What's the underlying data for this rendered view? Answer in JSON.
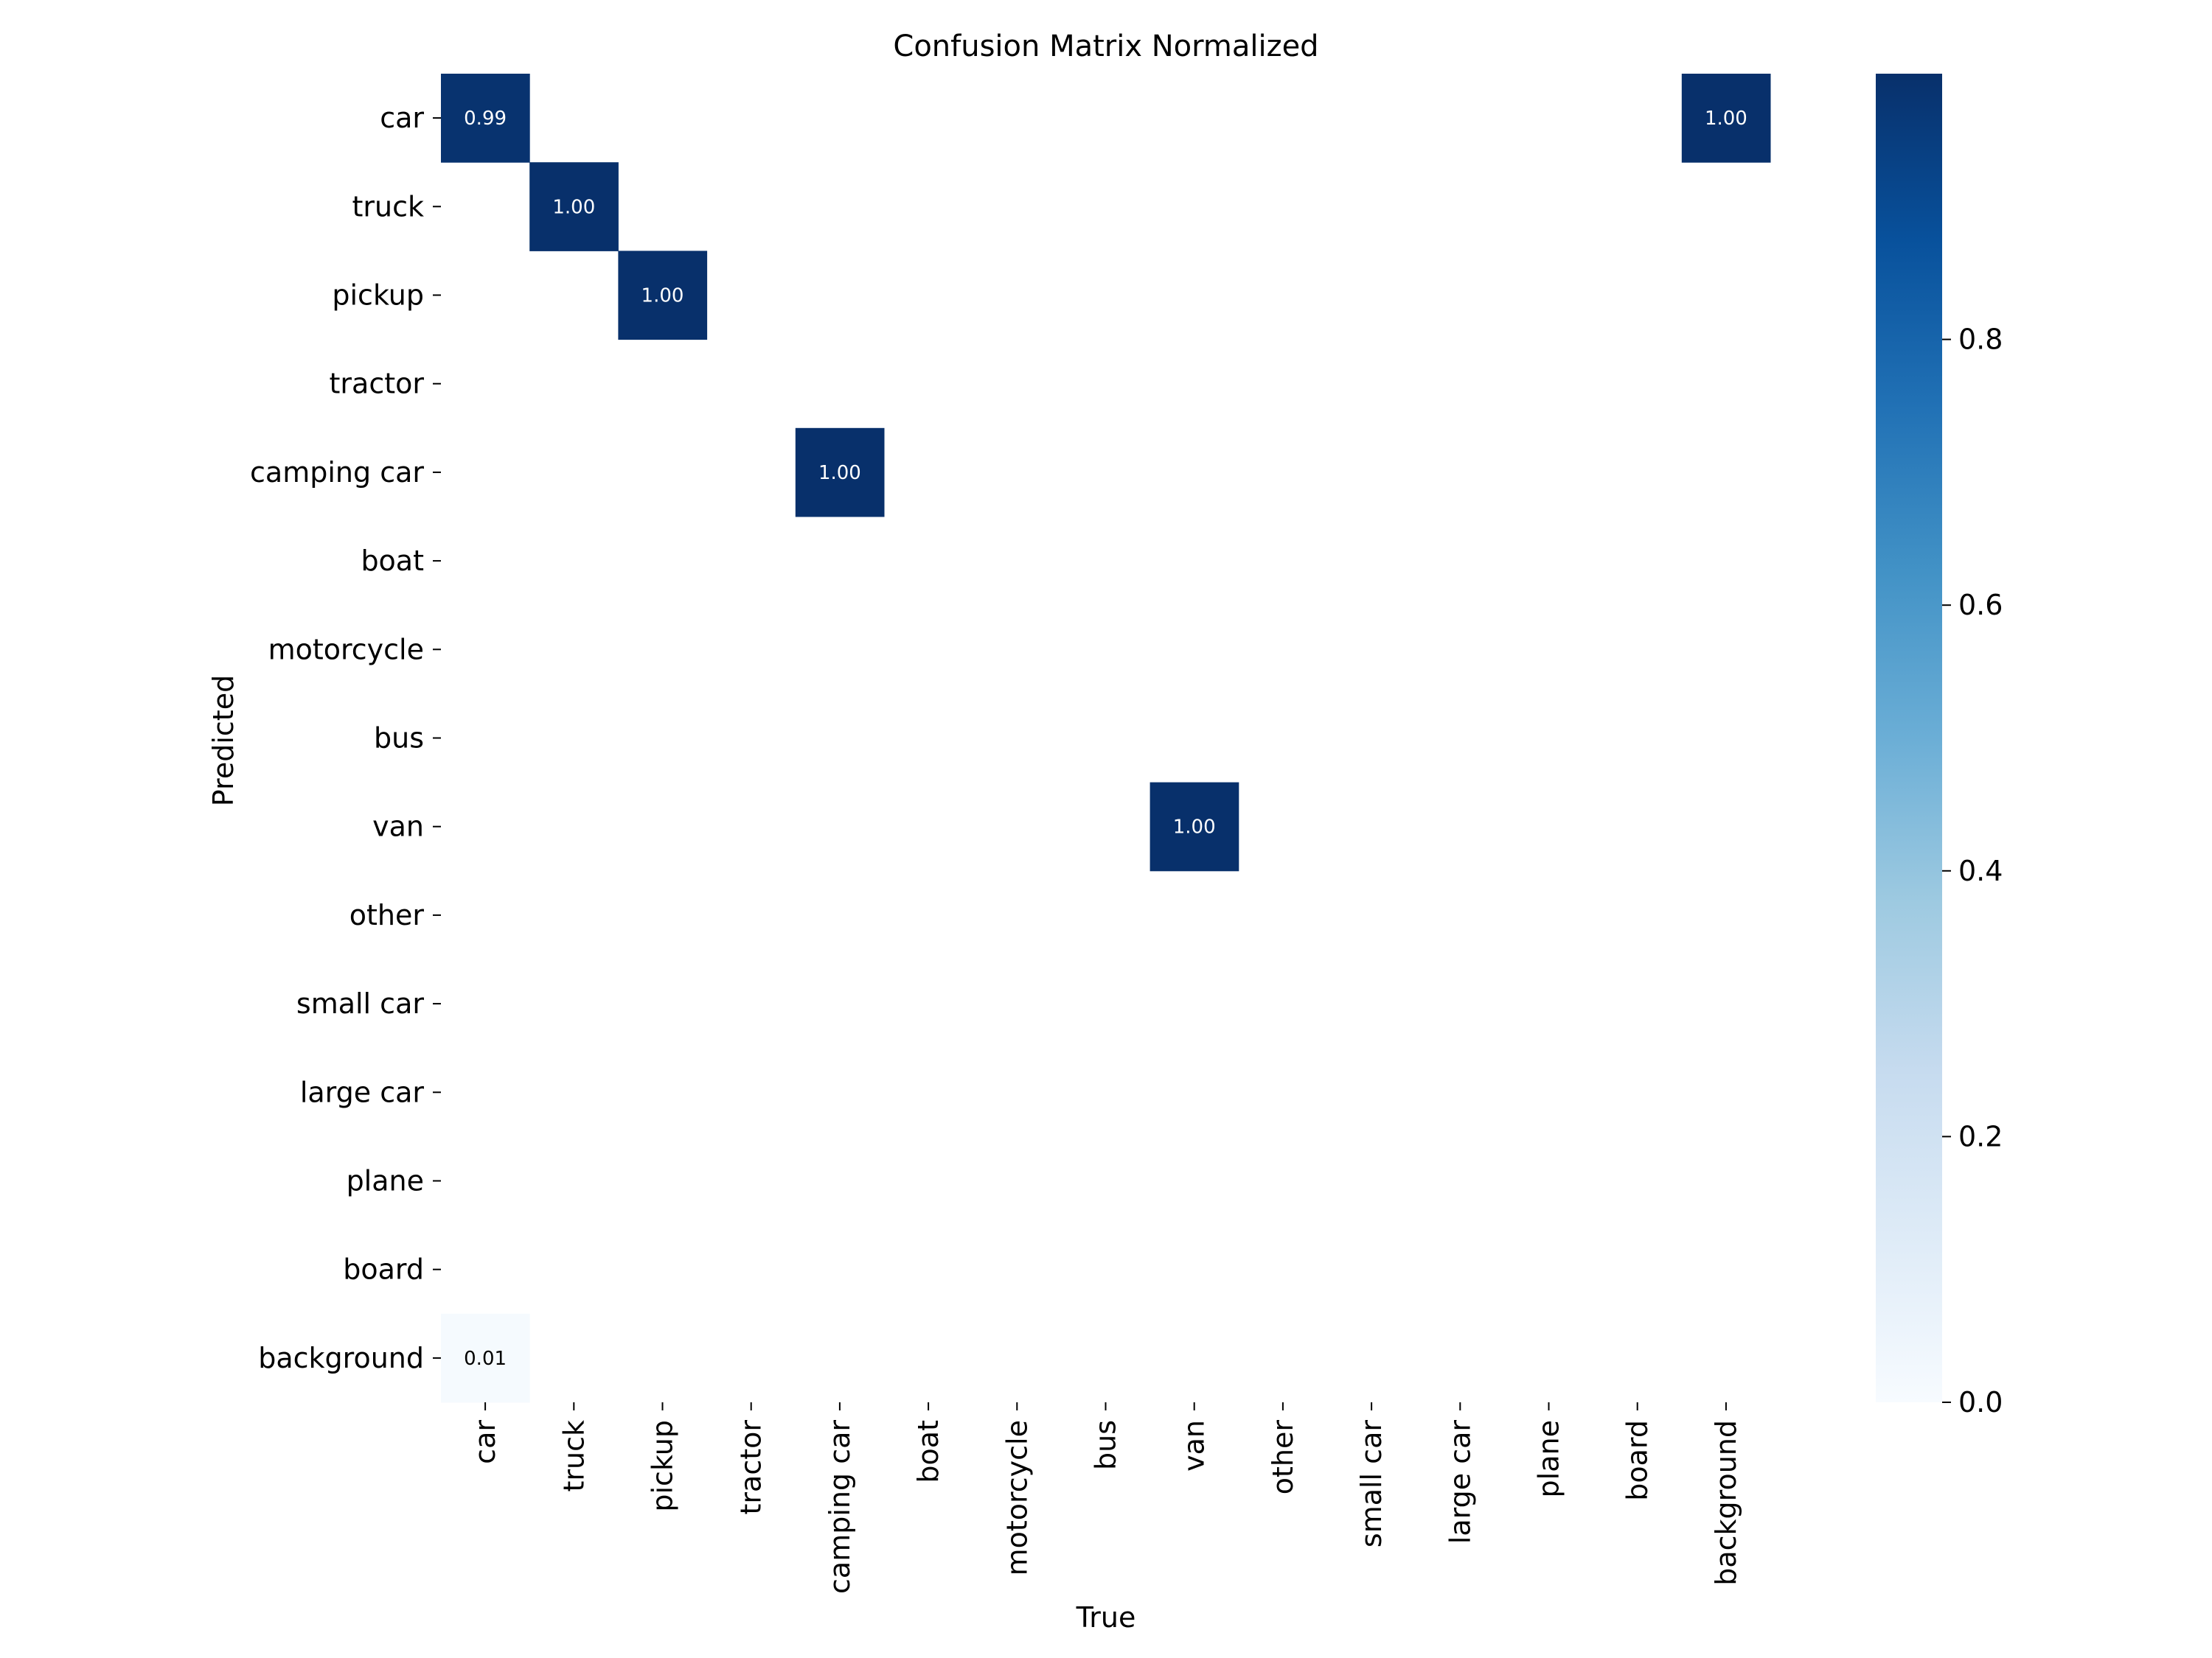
{
  "chart_data": {
    "type": "heatmap",
    "title": "Confusion Matrix Normalized",
    "xlabel": "True",
    "ylabel": "Predicted",
    "x_categories": [
      "car",
      "truck",
      "pickup",
      "tractor",
      "camping car",
      "boat",
      "motorcycle",
      "bus",
      "van",
      "other",
      "small car",
      "large car",
      "plane",
      "board",
      "background"
    ],
    "y_categories": [
      "car",
      "truck",
      "pickup",
      "tractor",
      "camping car",
      "boat",
      "motorcycle",
      "bus",
      "van",
      "other",
      "small car",
      "large car",
      "plane",
      "board",
      "background"
    ],
    "cells": [
      {
        "row": 0,
        "col": 0,
        "value": 0.99,
        "label": "0.99"
      },
      {
        "row": 0,
        "col": 14,
        "value": 1.0,
        "label": "1.00"
      },
      {
        "row": 1,
        "col": 1,
        "value": 1.0,
        "label": "1.00"
      },
      {
        "row": 2,
        "col": 2,
        "value": 1.0,
        "label": "1.00"
      },
      {
        "row": 4,
        "col": 4,
        "value": 1.0,
        "label": "1.00"
      },
      {
        "row": 8,
        "col": 8,
        "value": 1.0,
        "label": "1.00"
      },
      {
        "row": 14,
        "col": 0,
        "value": 0.01,
        "label": "0.01"
      }
    ],
    "colorbar": {
      "range": [
        0.0,
        1.0
      ],
      "ticks": [
        0.0,
        0.2,
        0.4,
        0.6,
        0.8
      ],
      "tick_labels": [
        "0.0",
        "0.2",
        "0.4",
        "0.6",
        "0.8"
      ],
      "colormap": "Blues",
      "low_color": "#f7fbff",
      "high_color": "#08306b"
    },
    "grid": false
  }
}
